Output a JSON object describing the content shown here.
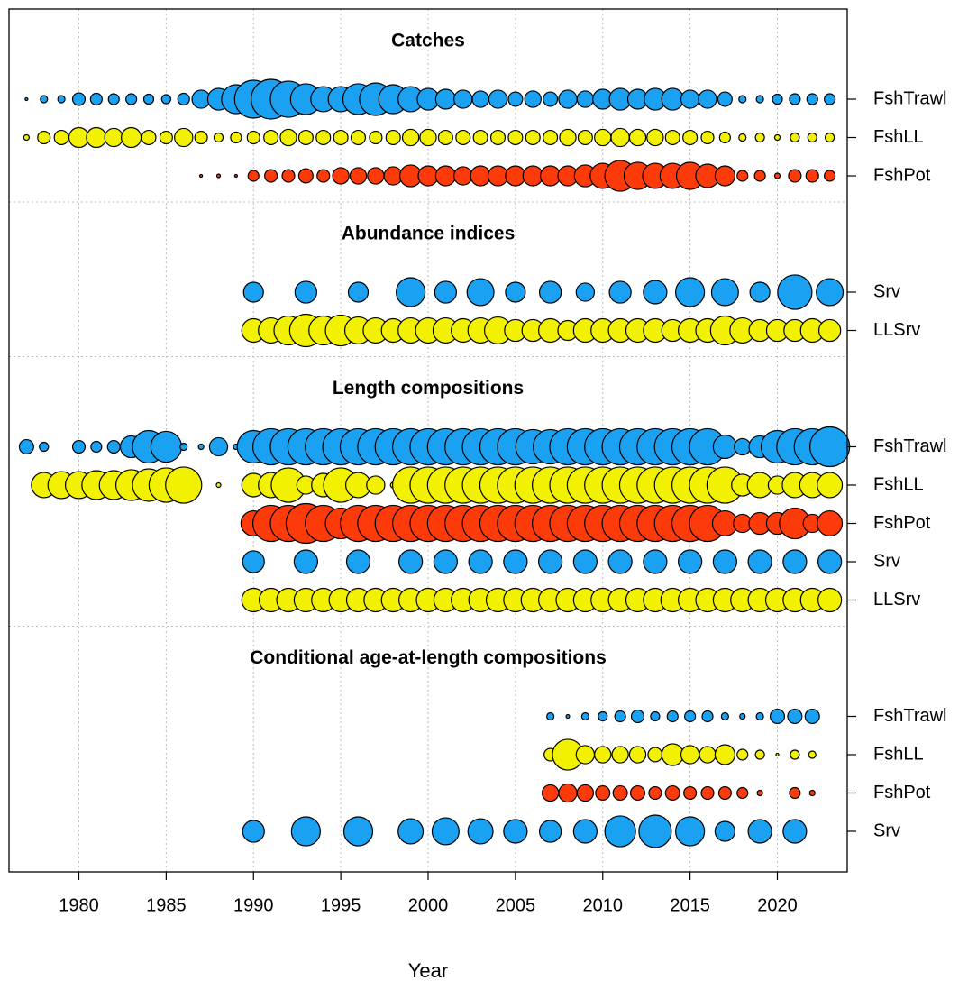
{
  "chart_data": {
    "type": "bubble",
    "x_label": "Year",
    "xlim": [
      1976,
      2024
    ],
    "xticks": [
      1980,
      1985,
      1990,
      1995,
      2000,
      2005,
      2010,
      2015,
      2020
    ],
    "grid": true,
    "panels": [
      {
        "title": "Catches",
        "series": [
          {
            "name": "FshTrawl",
            "color": "#1ba1f2",
            "x": [
              1977,
              1978,
              1979,
              1980,
              1981,
              1982,
              1983,
              1984,
              1985,
              1986,
              1987,
              1988,
              1989,
              1990,
              1991,
              1992,
              1993,
              1994,
              1995,
              1996,
              1997,
              1998,
              1999,
              2000,
              2001,
              2002,
              2003,
              2004,
              2005,
              2006,
              2007,
              2008,
              2009,
              2010,
              2011,
              2012,
              2013,
              2014,
              2015,
              2016,
              2017,
              2018,
              2019,
              2020,
              2021,
              2022,
              2023
            ],
            "values": [
              0.5,
              3.3,
              3.3,
              10,
              8.7,
              7.4,
              7.4,
              6.3,
              5.2,
              8.7,
              21,
              30,
              53,
              91,
              100,
              83,
              60,
              40,
              40,
              60,
              67,
              53,
              40,
              30,
              25,
              21,
              17,
              21,
              13,
              17,
              13,
              21,
              17,
              25,
              30,
              25,
              30,
              30,
              21,
              21,
              13,
              3.3,
              3.3,
              6.3,
              7.4,
              7.4,
              7.4
            ]
          },
          {
            "name": "FshLL",
            "color": "#f2f200",
            "x": [
              1977,
              1978,
              1979,
              1980,
              1981,
              1982,
              1983,
              1984,
              1985,
              1986,
              1987,
              1988,
              1989,
              1990,
              1991,
              1992,
              1993,
              1994,
              1995,
              1996,
              1997,
              1998,
              1999,
              2000,
              2001,
              2002,
              2003,
              2004,
              2005,
              2006,
              2007,
              2008,
              2009,
              2010,
              2011,
              2012,
              2013,
              2014,
              2015,
              2016,
              2017,
              2018,
              2019,
              2020,
              2021,
              2022,
              2023
            ],
            "values": [
              1.9,
              10,
              13,
              25,
              25,
              21,
              25,
              13,
              10,
              21,
              10,
              5.2,
              7.4,
              10,
              13,
              17,
              13,
              13,
              13,
              13,
              10,
              13,
              17,
              17,
              13,
              13,
              13,
              13,
              13,
              13,
              13,
              17,
              13,
              17,
              21,
              17,
              17,
              13,
              13,
              10,
              7.4,
              3.3,
              5.2,
              1.9,
              5.2,
              5.2,
              5.2
            ]
          },
          {
            "name": "FshPot",
            "color": "#fc3a0a",
            "x": [
              1987,
              1988,
              1989,
              1990,
              1991,
              1992,
              1993,
              1994,
              1995,
              1996,
              1997,
              1998,
              1999,
              2000,
              2001,
              2002,
              2003,
              2004,
              2005,
              2006,
              2007,
              2008,
              2009,
              2010,
              2011,
              2012,
              2013,
              2014,
              2015,
              2016,
              2017,
              2018,
              2019,
              2020,
              2021,
              2022,
              2023
            ],
            "values": [
              0.5,
              0.8,
              0.5,
              7.4,
              10,
              10,
              13,
              10,
              17,
              17,
              17,
              21,
              30,
              25,
              25,
              21,
              25,
              25,
              25,
              25,
              25,
              25,
              30,
              40,
              60,
              47,
              40,
              40,
              47,
              35,
              25,
              7.4,
              7.4,
              1.9,
              10,
              10,
              7.4
            ]
          }
        ]
      },
      {
        "title": "Abundance indices",
        "series": [
          {
            "name": "Srv",
            "color": "#1ba1f2",
            "x": [
              1990,
              1993,
              1996,
              1999,
              2001,
              2003,
              2005,
              2007,
              2009,
              2011,
              2013,
              2015,
              2017,
              2019,
              2021,
              2023
            ],
            "values": [
              25,
              30,
              25,
              53,
              30,
              46,
              25,
              30,
              21,
              30,
              35,
              53,
              46,
              25,
              75,
              46
            ]
          },
          {
            "name": "LLSrv",
            "color": "#f2f200",
            "x": [
              1990,
              1991,
              1992,
              1993,
              1994,
              1995,
              1996,
              1997,
              1998,
              1999,
              2000,
              2001,
              2002,
              2003,
              2004,
              2005,
              2006,
              2007,
              2008,
              2009,
              2010,
              2011,
              2012,
              2013,
              2014,
              2015,
              2016,
              2017,
              2018,
              2019,
              2020,
              2021,
              2022,
              2023
            ],
            "values": [
              35,
              40,
              53,
              67,
              53,
              60,
              46,
              40,
              35,
              40,
              40,
              40,
              35,
              40,
              46,
              30,
              30,
              35,
              25,
              35,
              35,
              35,
              35,
              35,
              30,
              35,
              35,
              53,
              40,
              30,
              30,
              30,
              35,
              30
            ]
          }
        ]
      },
      {
        "title": "Length compositions",
        "series": [
          {
            "name": "FshTrawl",
            "color": "#1ba1f2",
            "x": [
              1977,
              1978,
              1980,
              1981,
              1982,
              1983,
              1984,
              1985,
              1986,
              1987,
              1988,
              1989,
              1990,
              1991,
              1992,
              1993,
              1994,
              1995,
              1996,
              1997,
              1998,
              1999,
              2000,
              2001,
              2002,
              2003,
              2004,
              2005,
              2006,
              2007,
              2008,
              2009,
              2010,
              2011,
              2012,
              2013,
              2014,
              2015,
              2016,
              2017,
              2018,
              2019,
              2020,
              2021,
              2022,
              2023
            ],
            "values": [
              13,
              5.2,
              10,
              7.4,
              10,
              30,
              67,
              60,
              3.3,
              1.9,
              21,
              1.9,
              67,
              83,
              83,
              83,
              83,
              83,
              83,
              83,
              83,
              83,
              83,
              83,
              83,
              83,
              83,
              83,
              75,
              75,
              83,
              83,
              83,
              83,
              83,
              83,
              83,
              83,
              83,
              35,
              17,
              30,
              67,
              83,
              83,
              100
            ]
          },
          {
            "name": "FshLL",
            "color": "#f2f200",
            "x": [
              1978,
              1979,
              1980,
              1981,
              1982,
              1983,
              1984,
              1985,
              1986,
              1988,
              1990,
              1991,
              1992,
              1993,
              1994,
              1995,
              1996,
              1997,
              1998,
              1999,
              2000,
              2001,
              2002,
              2003,
              2004,
              2005,
              2006,
              2007,
              2008,
              2009,
              2010,
              2011,
              2012,
              2013,
              2014,
              2015,
              2016,
              2017,
              2018,
              2019,
              2020,
              2021,
              2022,
              2023
            ],
            "values": [
              40,
              46,
              46,
              53,
              53,
              60,
              67,
              75,
              83,
              1.3,
              35,
              40,
              75,
              21,
              35,
              75,
              40,
              21,
              1.9,
              83,
              83,
              83,
              83,
              83,
              83,
              83,
              83,
              83,
              83,
              83,
              83,
              83,
              83,
              83,
              83,
              83,
              83,
              83,
              30,
              40,
              21,
              40,
              40,
              40
            ]
          },
          {
            "name": "FshPot",
            "color": "#fc3a0a",
            "x": [
              1990,
              1991,
              1992,
              1993,
              1994,
              1995,
              1996,
              1997,
              1998,
              1999,
              2000,
              2001,
              2002,
              2003,
              2004,
              2005,
              2006,
              2007,
              2008,
              2009,
              2010,
              2011,
              2012,
              2013,
              2014,
              2015,
              2016,
              2017,
              2018,
              2019,
              2020,
              2021,
              2022,
              2023
            ],
            "values": [
              40,
              83,
              83,
              100,
              83,
              60,
              83,
              83,
              83,
              83,
              83,
              83,
              83,
              83,
              83,
              83,
              83,
              83,
              83,
              83,
              83,
              83,
              83,
              83,
              83,
              83,
              83,
              40,
              21,
              30,
              30,
              60,
              21,
              40
            ]
          },
          {
            "name": "Srv",
            "color": "#1ba1f2",
            "x": [
              1990,
              1993,
              1996,
              1999,
              2001,
              2003,
              2005,
              2007,
              2009,
              2011,
              2013,
              2015,
              2017,
              2019,
              2021,
              2023
            ],
            "values": [
              30,
              35,
              35,
              35,
              35,
              35,
              35,
              35,
              35,
              35,
              35,
              35,
              35,
              35,
              35,
              35
            ]
          },
          {
            "name": "LLSrv",
            "color": "#f2f200",
            "x": [
              1990,
              1991,
              1992,
              1993,
              1994,
              1995,
              1996,
              1997,
              1998,
              1999,
              2000,
              2001,
              2002,
              2003,
              2004,
              2005,
              2006,
              2007,
              2008,
              2009,
              2010,
              2011,
              2012,
              2013,
              2014,
              2015,
              2016,
              2017,
              2018,
              2019,
              2020,
              2021,
              2022,
              2023
            ],
            "values": [
              35,
              35,
              35,
              35,
              35,
              35,
              35,
              35,
              35,
              35,
              35,
              35,
              35,
              35,
              35,
              35,
              35,
              35,
              35,
              35,
              35,
              35,
              35,
              35,
              35,
              35,
              35,
              35,
              35,
              35,
              35,
              35,
              35,
              35
            ]
          }
        ]
      },
      {
        "title": "Conditional age-at-length compositions",
        "series": [
          {
            "name": "FshTrawl",
            "color": "#1ba1f2",
            "x": [
              2007,
              2008,
              2009,
              2010,
              2011,
              2012,
              2013,
              2014,
              2015,
              2016,
              2017,
              2018,
              2019,
              2020,
              2021,
              2022
            ],
            "values": [
              3.3,
              0.8,
              3.3,
              5.2,
              7.4,
              10,
              5.2,
              7.4,
              7.4,
              7.4,
              3.3,
              1.9,
              3.3,
              13,
              13,
              13
            ]
          },
          {
            "name": "FshLL",
            "color": "#f2f200",
            "x": [
              2007,
              2008,
              2009,
              2010,
              2011,
              2012,
              2013,
              2014,
              2015,
              2016,
              2017,
              2018,
              2019,
              2020,
              2021,
              2022
            ],
            "values": [
              10,
              60,
              21,
              17,
              17,
              17,
              13,
              30,
              21,
              17,
              25,
              7.4,
              5.2,
              0.5,
              5.2,
              3.3
            ]
          },
          {
            "name": "FshPot",
            "color": "#fc3a0a",
            "x": [
              2007,
              2008,
              2009,
              2010,
              2011,
              2012,
              2013,
              2014,
              2015,
              2016,
              2017,
              2018,
              2019,
              2021,
              2022
            ],
            "values": [
              17,
              21,
              17,
              13,
              13,
              13,
              10,
              13,
              10,
              10,
              10,
              7.4,
              1.9,
              7.4,
              1.9
            ]
          },
          {
            "name": "Srv",
            "color": "#1ba1f2",
            "x": [
              1990,
              1993,
              1996,
              1999,
              2001,
              2003,
              2005,
              2007,
              2009,
              2011,
              2013,
              2015,
              2017,
              2019,
              2021
            ],
            "values": [
              30,
              53,
              53,
              40,
              46,
              40,
              35,
              30,
              35,
              60,
              67,
              53,
              25,
              35,
              35
            ]
          }
        ]
      }
    ]
  }
}
